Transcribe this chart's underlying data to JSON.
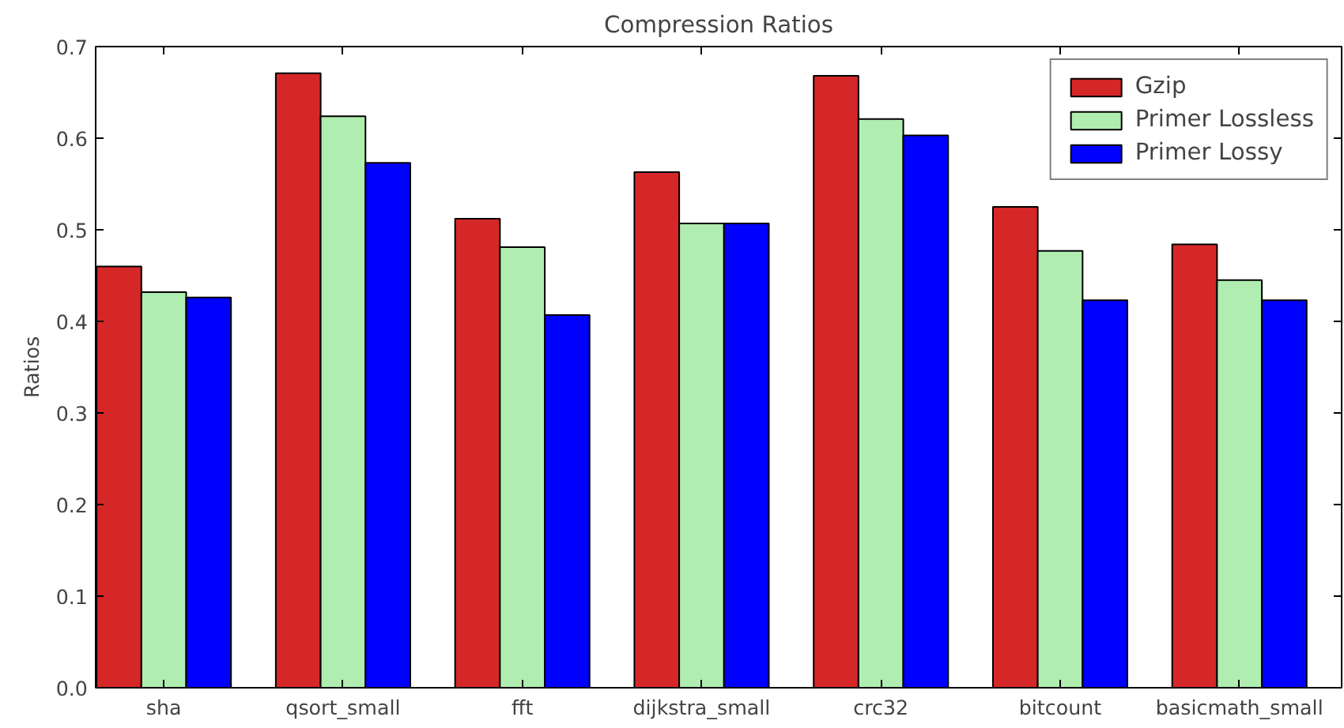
{
  "chart_data": {
    "type": "bar",
    "title": "Compression Ratios",
    "ylabel": "Ratios",
    "categories": [
      "sha",
      "qsort_small",
      "fft",
      "dijkstra_small",
      "crc32",
      "bitcount",
      "basicmath_small"
    ],
    "series": [
      {
        "name": "Gzip",
        "color": "#d62728",
        "values": [
          0.46,
          0.671,
          0.512,
          0.563,
          0.668,
          0.525,
          0.484
        ]
      },
      {
        "name": "Primer Lossless",
        "color": "#b0edb0",
        "values": [
          0.432,
          0.624,
          0.481,
          0.507,
          0.621,
          0.477,
          0.445
        ]
      },
      {
        "name": "Primer Lossy",
        "color": "#0000ff",
        "values": [
          0.426,
          0.573,
          0.407,
          0.507,
          0.603,
          0.423,
          0.423
        ]
      }
    ],
    "ylim": [
      0,
      0.7
    ],
    "yticks": [
      {
        "value": 0,
        "label": "0.0"
      },
      0.1,
      0.2,
      0.3,
      0.4,
      0.5,
      0.6,
      0.7
    ],
    "legend": "top right",
    "grid": false
  }
}
